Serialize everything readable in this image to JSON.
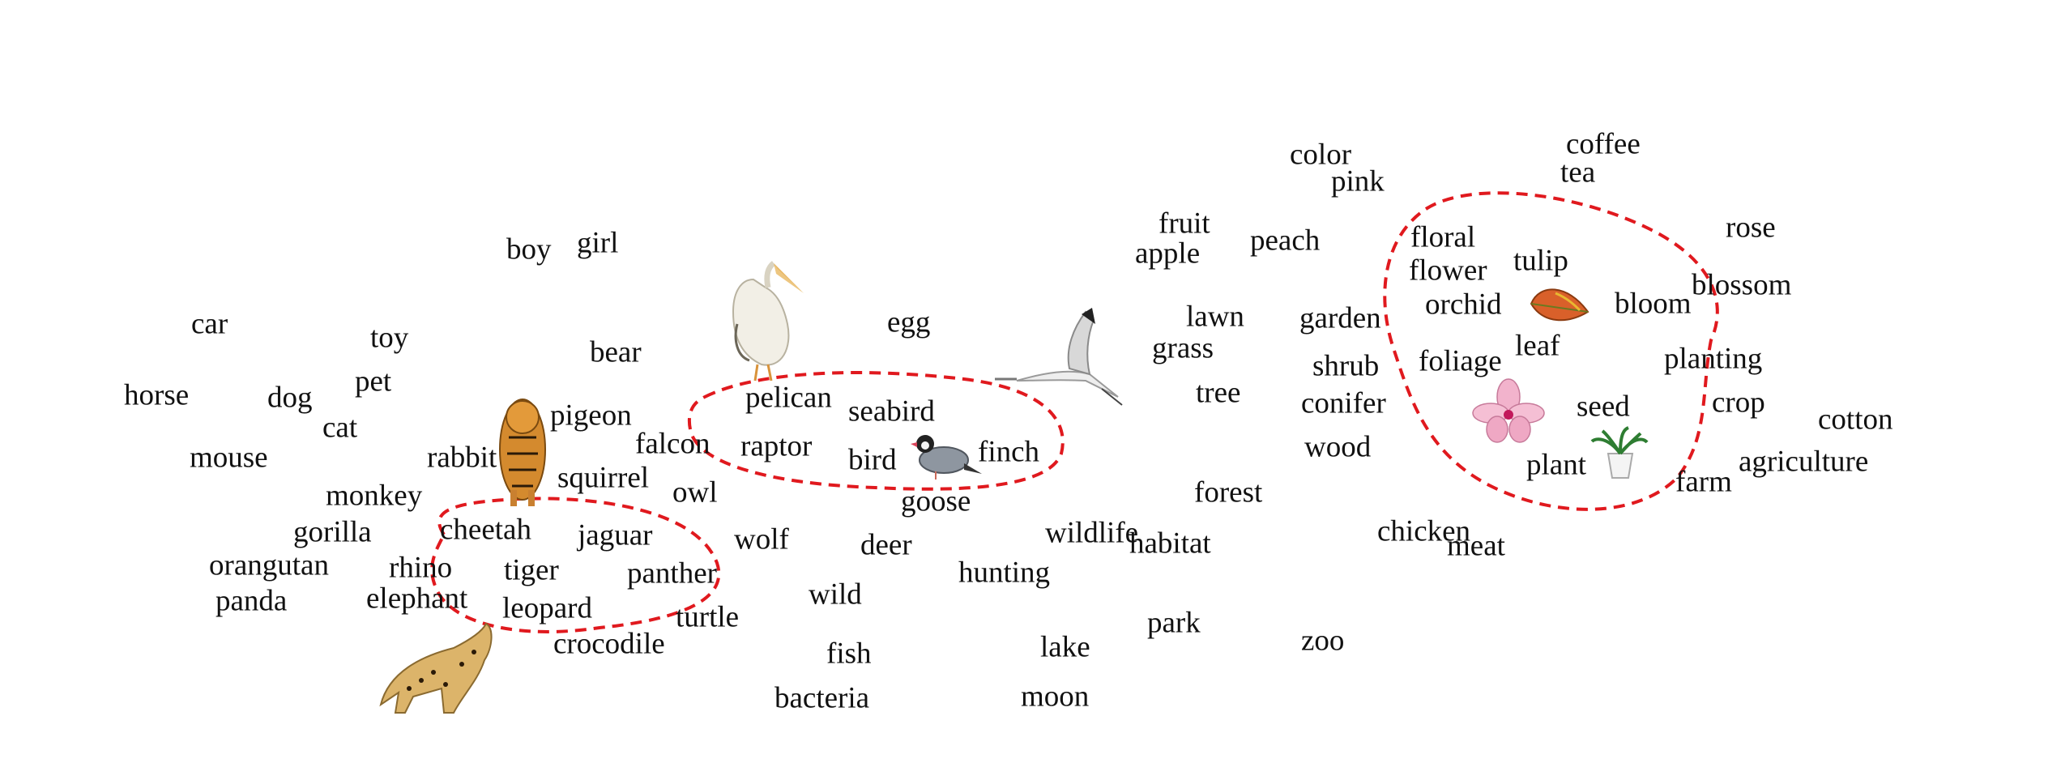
{
  "words": {
    "car": "car",
    "toy": "toy",
    "horse": "horse",
    "dog": "dog",
    "pet": "pet",
    "cat": "cat",
    "mouse": "mouse",
    "monkey": "monkey",
    "gorilla": "gorilla",
    "orangutan": "orangutan",
    "panda": "panda",
    "rhino": "rhino",
    "elephant": "elephant",
    "rabbit": "rabbit",
    "boy": "boy",
    "girl": "girl",
    "bear": "bear",
    "pigeon": "pigeon",
    "falcon": "falcon",
    "squirrel": "squirrel",
    "owl": "owl",
    "cheetah": "cheetah",
    "jaguar": "jaguar",
    "tiger": "tiger",
    "panther": "panther",
    "leopard": "leopard",
    "turtle": "turtle",
    "crocodile": "crocodile",
    "wolf": "wolf",
    "deer": "deer",
    "wild": "wild",
    "fish": "fish",
    "bacteria": "bacteria",
    "egg": "egg",
    "pelican": "pelican",
    "seabird": "seabird",
    "raptor": "raptor",
    "bird": "bird",
    "finch": "finch",
    "goose": "goose",
    "wildlife": "wildlife",
    "hunting": "hunting",
    "lake": "lake",
    "moon": "moon",
    "habitat": "habitat",
    "park": "park",
    "zoo": "zoo",
    "forest": "forest",
    "tree": "tree",
    "lawn": "lawn",
    "grass": "grass",
    "fruit": "fruit",
    "apple": "apple",
    "peach": "peach",
    "color": "color",
    "pink": "pink",
    "garden": "garden",
    "shrub": "shrub",
    "conifer": "conifer",
    "wood": "wood",
    "chicken": "chicken",
    "meat": "meat",
    "coffee": "coffee",
    "tea": "tea",
    "floral": "floral",
    "flower": "flower",
    "tulip": "tulip",
    "orchid": "orchid",
    "bloom": "bloom",
    "foliage": "foliage",
    "leaf": "leaf",
    "seed": "seed",
    "plant": "plant",
    "rose": "rose",
    "blossom": "blossom",
    "planting": "planting",
    "crop": "crop",
    "cotton": "cotton",
    "agriculture": "agriculture",
    "farm": "farm"
  },
  "colors": {
    "text": "#111111",
    "cluster_outline": "#e0191e"
  },
  "icons": {
    "tiger": "tiger-icon",
    "cheetah": "cheetah-icon",
    "pelican": "pelican-icon",
    "finch": "finch-icon",
    "crane": "crane-icon",
    "autumn_leaf": "autumn-leaf-icon",
    "orchid_flower": "orchid-flower-icon",
    "potted_plant": "potted-plant-icon"
  }
}
